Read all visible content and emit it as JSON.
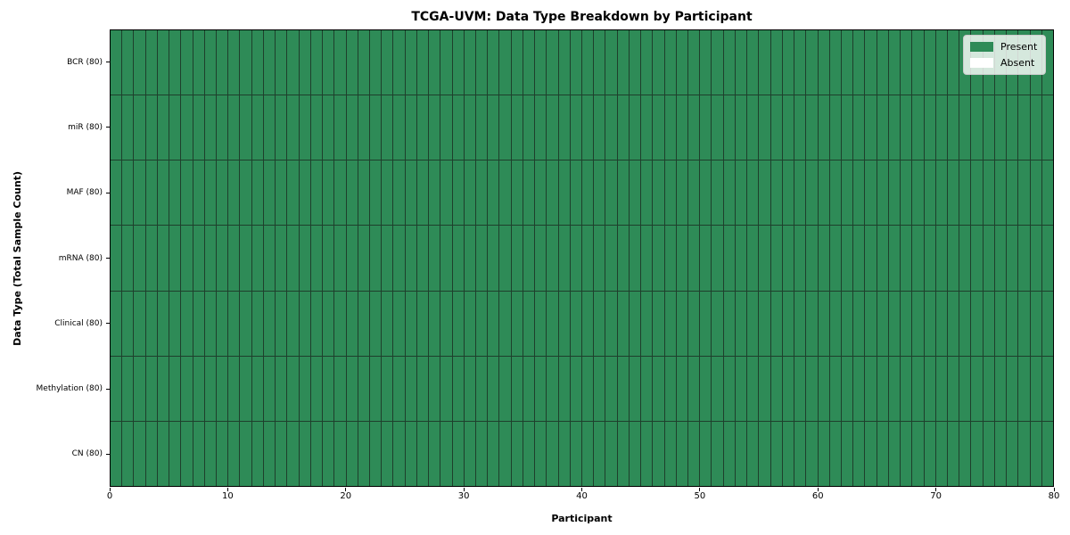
{
  "chart_data": {
    "type": "heatmap",
    "title": "TCGA-UVM: Data Type Breakdown by Participant",
    "xlabel": "Participant",
    "ylabel": "Data Type (Total Sample Count)",
    "x_range": [
      0,
      80
    ],
    "x_ticks": [
      0,
      10,
      20,
      30,
      40,
      50,
      60,
      70,
      80
    ],
    "n_participants": 80,
    "rows": [
      {
        "label": "BCR (80)",
        "data_type": "BCR",
        "total_samples": 80,
        "present_count": 80
      },
      {
        "label": "miR (80)",
        "data_type": "miR",
        "total_samples": 80,
        "present_count": 80
      },
      {
        "label": "MAF (80)",
        "data_type": "MAF",
        "total_samples": 80,
        "present_count": 80
      },
      {
        "label": "mRNA (80)",
        "data_type": "mRNA",
        "total_samples": 80,
        "present_count": 80
      },
      {
        "label": "Clinical (80)",
        "data_type": "Clinical",
        "total_samples": 80,
        "present_count": 80
      },
      {
        "label": "Methylation (80)",
        "data_type": "Methylation",
        "total_samples": 80,
        "present_count": 80
      },
      {
        "label": "CN (80)",
        "data_type": "CN",
        "total_samples": 80,
        "present_count": 80
      }
    ],
    "matrix_encoding": "1=Present, 0=Absent; one string per row (top to bottom), one char per participant (0-79)",
    "matrix": [
      "11111111111111111111111111111111111111111111111111111111111111111111111111111111",
      "11111111111111111111111111111111111111111111111111111111111111111111111111111111",
      "11111111111111111111111111111111111111111111111111111111111111111111111111111111",
      "11111111111111111111111111111111111111111111111111111111111111111111111111111111",
      "11111111111111111111111111111111111111111111111111111111111111111111111111111111",
      "11111111111111111111111111111111111111111111111111111111111111111111111111111111",
      "11111111111111111111111111111111111111111111111111111111111111111111111111111111"
    ],
    "colors": {
      "present": "#2E8B57",
      "absent": "#ffffff",
      "grid_line": "#1e3f2c",
      "spine": "#000000"
    },
    "legend": {
      "position": "upper right",
      "entries": [
        {
          "label": "Present",
          "color": "#2E8B57"
        },
        {
          "label": "Absent",
          "color": "#ffffff"
        }
      ]
    }
  }
}
